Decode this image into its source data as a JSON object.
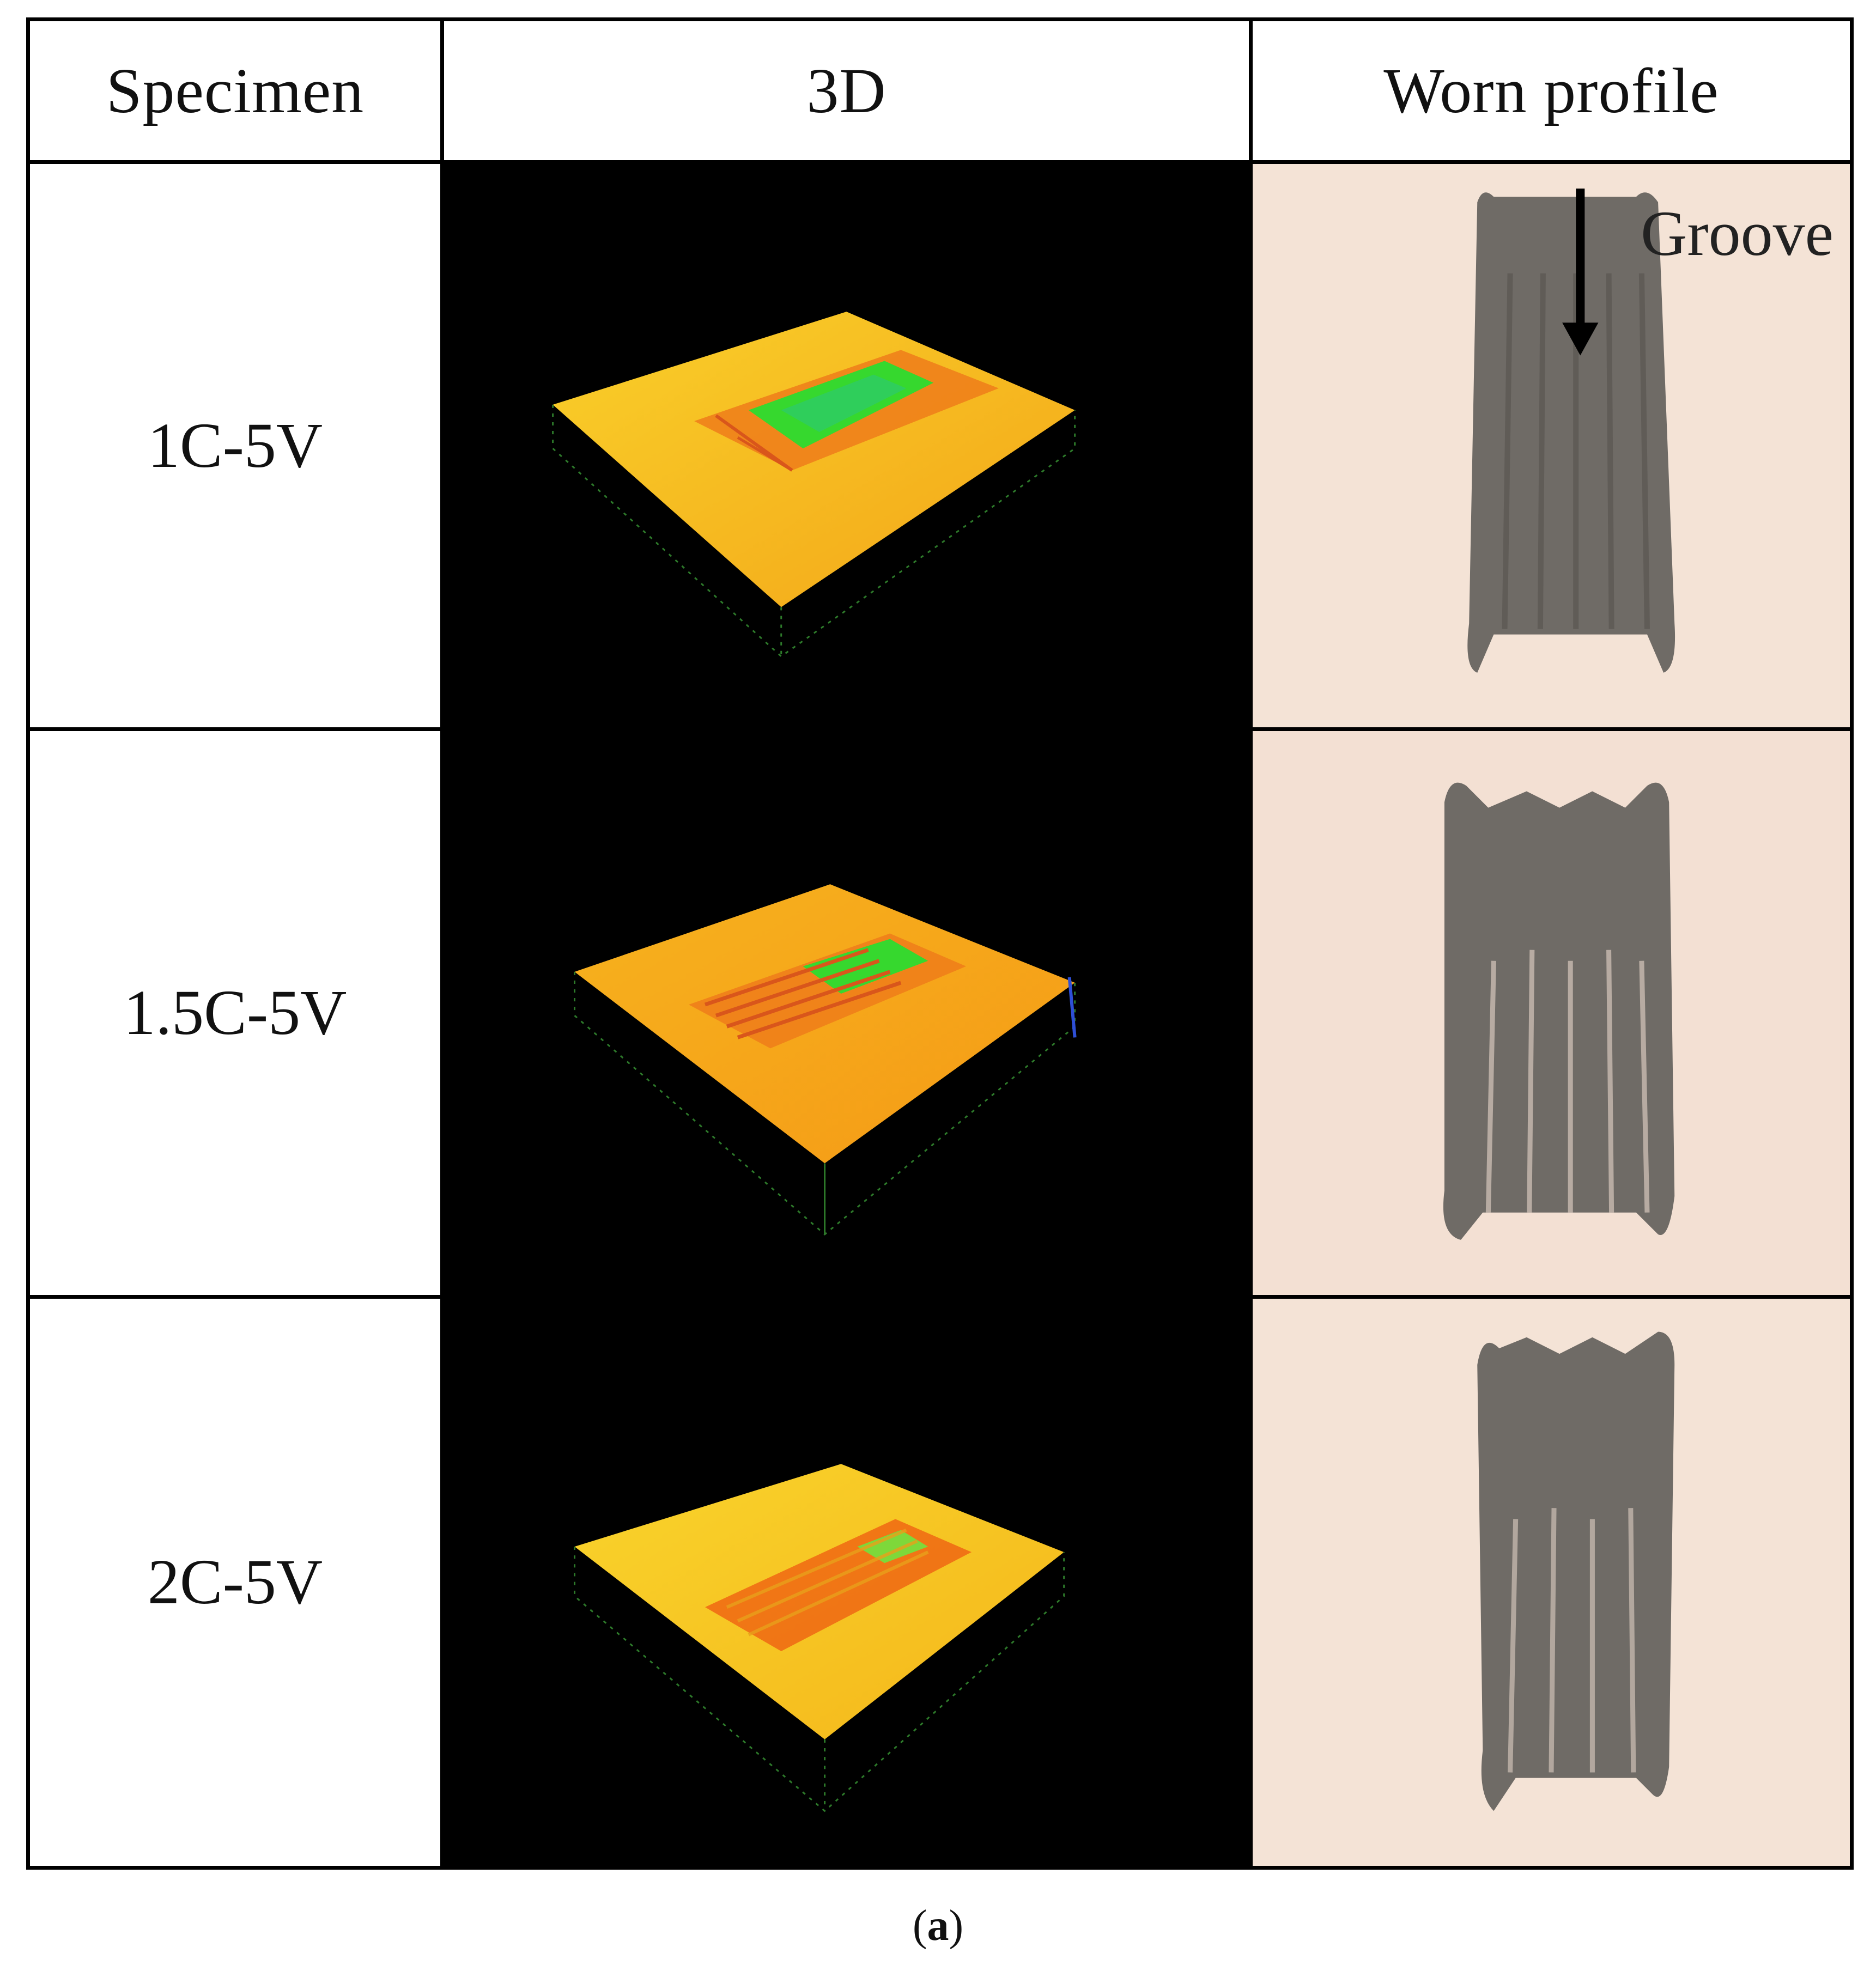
{
  "table": {
    "headers": {
      "specimen": "Specimen",
      "three_d": "3D",
      "worn_profile": "Worn profile"
    },
    "rows": [
      {
        "specimen": "1C-5V"
      },
      {
        "specimen": "1.5C-5V"
      },
      {
        "specimen": "2C-5V"
      }
    ],
    "annotation": "Groove"
  },
  "caption": {
    "open": "(",
    "letter": "a",
    "close": ")"
  },
  "colors": {
    "surface_yellow": "#f6c21a",
    "surface_orange": "#f08a16",
    "wear_red": "#e25a12",
    "wear_green": "#35d62c",
    "worn_background": "#f4e3d6",
    "worn_track": "#6f6b66"
  }
}
